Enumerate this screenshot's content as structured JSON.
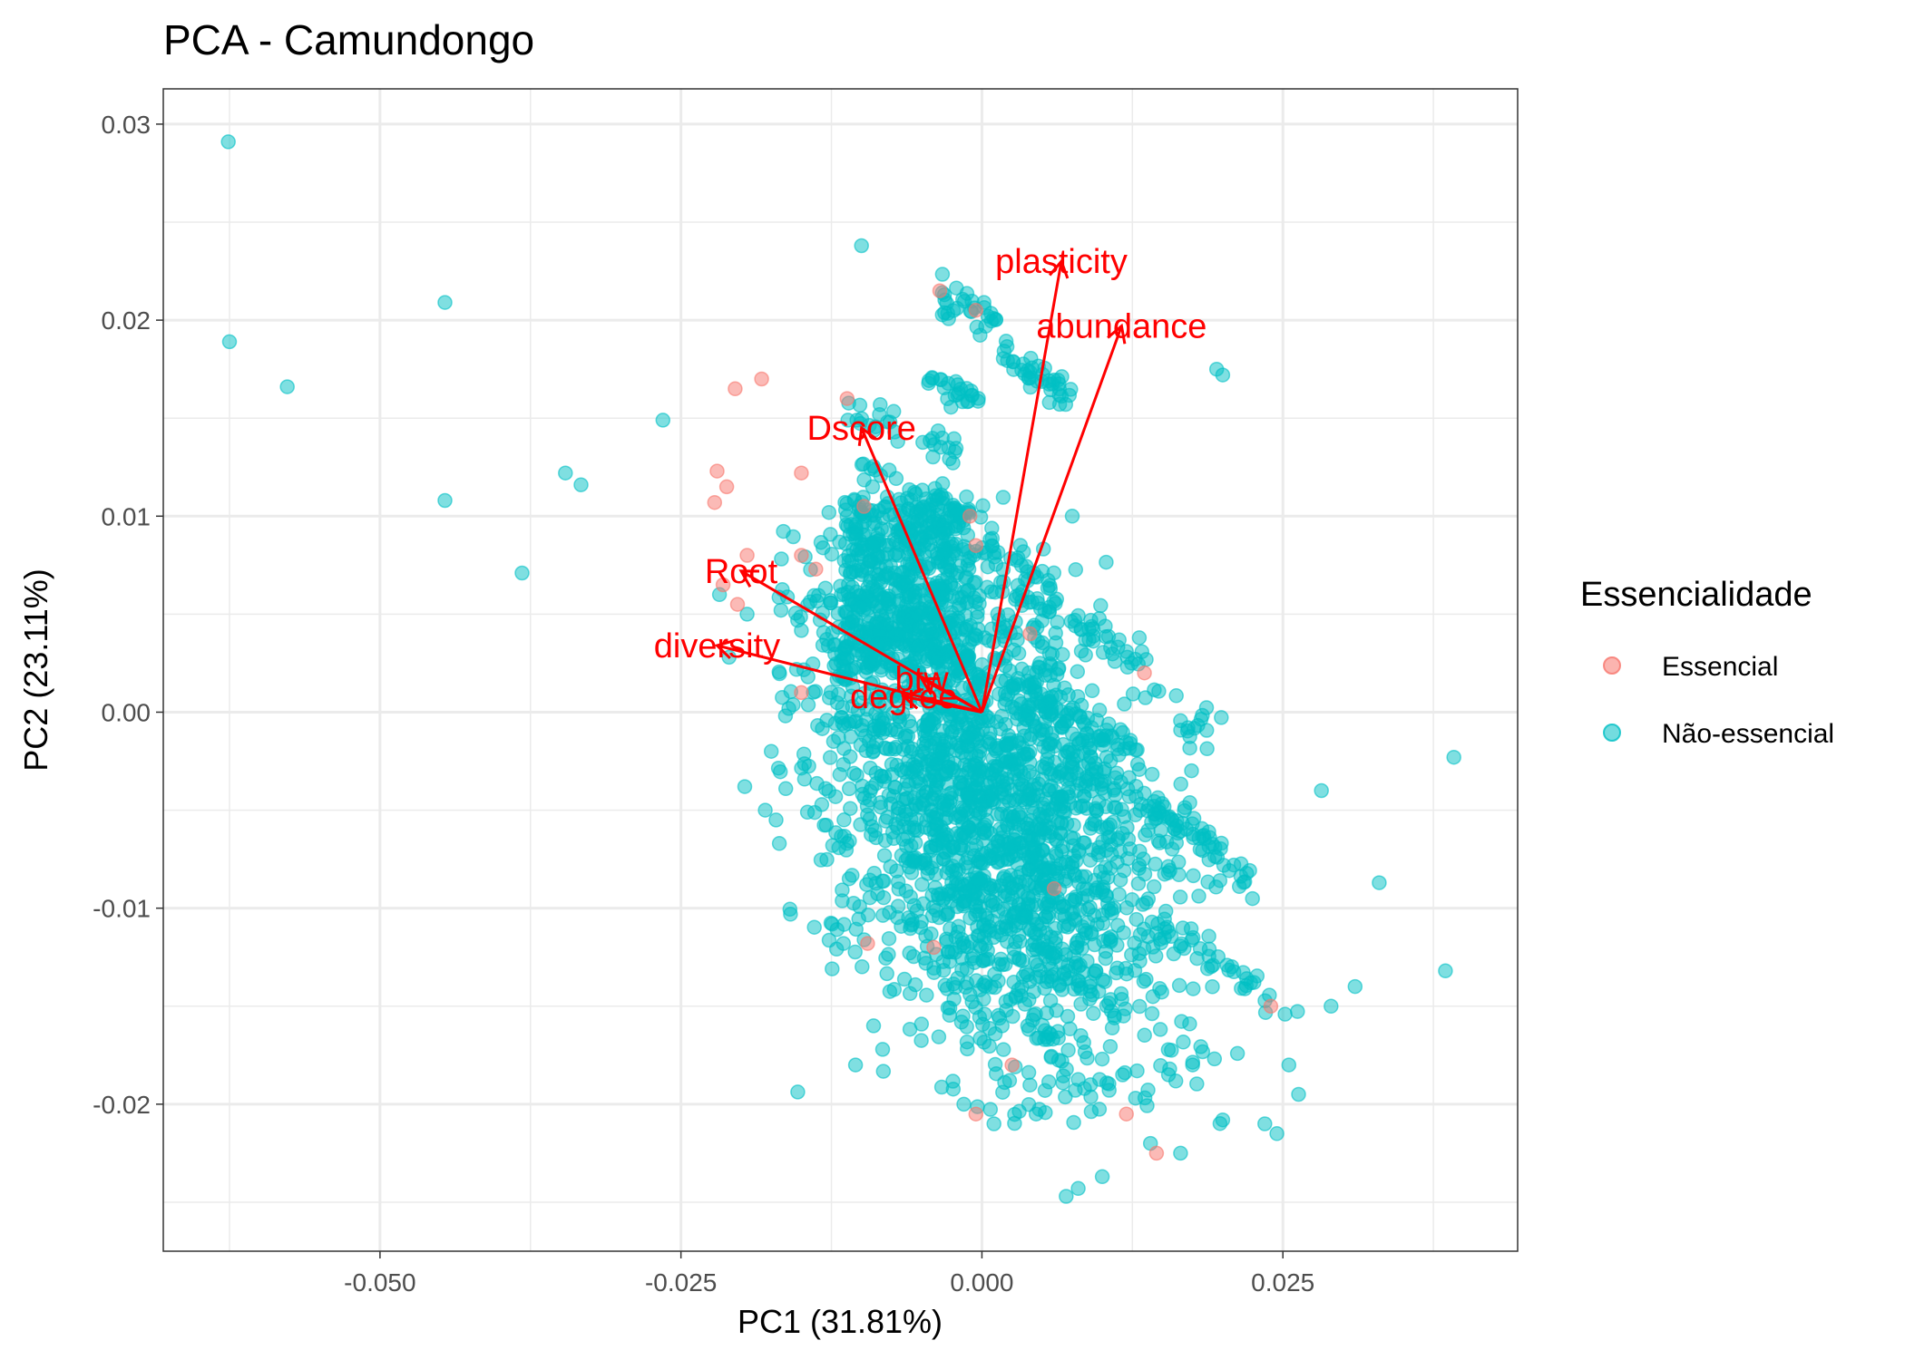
{
  "chart_data": {
    "type": "scatter",
    "title": "PCA - Camundongo",
    "xlabel": "PC1 (31.81%)",
    "ylabel": "PC2 (23.11%)",
    "xlim": [
      -0.068,
      0.0445
    ],
    "ylim": [
      -0.0275,
      0.0318
    ],
    "x_ticks": [
      -0.05,
      -0.025,
      0.0,
      0.025
    ],
    "x_tick_labels": [
      "-0.050",
      "-0.025",
      "0.000",
      "0.025"
    ],
    "y_ticks": [
      -0.02,
      -0.01,
      0.0,
      0.01,
      0.02,
      0.03
    ],
    "y_tick_labels": [
      "-0.02",
      "-0.01",
      "0.00",
      "0.01",
      "0.02",
      "0.03"
    ],
    "grid": true,
    "legend": {
      "title": "Essencialidade",
      "position": "right",
      "entries": [
        {
          "label": "Essencial",
          "color": "#F8766D"
        },
        {
          "label": "Não-essencial",
          "color": "#00BFC4"
        }
      ]
    },
    "arrow_color": "#FF0000",
    "loadings": [
      {
        "name": "plasticity",
        "x": 0.0066,
        "y": 0.023
      },
      {
        "name": "abundance",
        "x": 0.0116,
        "y": 0.0197
      },
      {
        "name": "Dscore",
        "x": -0.01,
        "y": 0.0145
      },
      {
        "name": "Root",
        "x": -0.02,
        "y": 0.0072
      },
      {
        "name": "diversity",
        "x": -0.022,
        "y": 0.0034
      },
      {
        "name": "btw",
        "x": -0.005,
        "y": 0.0017
      },
      {
        "name": "degree",
        "x": -0.0065,
        "y": 0.0008
      }
    ],
    "series": [
      {
        "name": "Essencial",
        "color": "#F8766D",
        "points": [
          [
            -0.0205,
            0.0165
          ],
          [
            -0.0183,
            0.017
          ],
          [
            -0.0112,
            0.016
          ],
          [
            -0.022,
            0.0123
          ],
          [
            -0.0212,
            0.0115
          ],
          [
            -0.015,
            0.0122
          ],
          [
            -0.0222,
            0.0107
          ],
          [
            -0.0195,
            0.008
          ],
          [
            -0.015,
            0.008
          ],
          [
            -0.0138,
            0.0073
          ],
          [
            -0.0215,
            0.0065
          ],
          [
            -0.0203,
            0.0055
          ],
          [
            -0.015,
            0.001
          ],
          [
            -0.0098,
            0.0105
          ],
          [
            -0.0035,
            0.0215
          ],
          [
            -0.0005,
            0.0205
          ],
          [
            -0.001,
            0.01
          ],
          [
            -0.0005,
            0.0085
          ],
          [
            0.004,
            0.004
          ],
          [
            0.0135,
            0.002
          ],
          [
            0.0025,
            -0.018
          ],
          [
            -0.0005,
            -0.0205
          ],
          [
            0.012,
            -0.0205
          ],
          [
            0.0145,
            -0.0225
          ],
          [
            -0.0095,
            -0.0118
          ],
          [
            0.024,
            -0.015
          ],
          [
            -0.004,
            -0.012
          ],
          [
            0.006,
            -0.009
          ]
        ]
      },
      {
        "name": "Não-essencial",
        "color": "#00BFC4",
        "points": [
          [
            -0.0626,
            0.0291
          ],
          [
            -0.0625,
            0.0189
          ],
          [
            -0.0577,
            0.0166
          ],
          [
            -0.0446,
            0.0209
          ],
          [
            -0.0446,
            0.0108
          ],
          [
            -0.0382,
            0.0071
          ],
          [
            -0.0346,
            0.0122
          ],
          [
            -0.0333,
            0.0116
          ],
          [
            -0.0265,
            0.0149
          ],
          [
            -0.01,
            0.0238
          ],
          [
            0.0075,
            0.01
          ],
          [
            0.0195,
            0.0175
          ],
          [
            0.02,
            0.0172
          ],
          [
            0.0392,
            -0.0023
          ],
          [
            0.0282,
            -0.004
          ],
          [
            0.033,
            -0.0087
          ],
          [
            0.0385,
            -0.0132
          ],
          [
            0.031,
            -0.014
          ],
          [
            0.029,
            -0.015
          ],
          [
            0.0263,
            -0.0195
          ],
          [
            0.0255,
            -0.018
          ],
          [
            -0.0197,
            -0.0038
          ],
          [
            -0.018,
            -0.005
          ],
          [
            -0.0171,
            -0.0055
          ],
          [
            -0.0175,
            -0.002
          ],
          [
            -0.0195,
            0.005
          ],
          [
            -0.021,
            0.0028
          ],
          [
            -0.0218,
            0.006
          ],
          [
            -0.0115,
            -0.0118
          ],
          [
            -0.0105,
            -0.018
          ],
          [
            -0.009,
            -0.016
          ],
          [
            -0.0015,
            -0.02
          ],
          [
            0.007,
            -0.0247
          ],
          [
            0.008,
            -0.0243
          ],
          [
            0.01,
            -0.0237
          ],
          [
            0.014,
            -0.022
          ],
          [
            0.0165,
            -0.0225
          ],
          [
            0.02,
            -0.0208
          ],
          [
            0.0235,
            -0.021
          ],
          [
            0.0245,
            -0.0215
          ],
          [
            0.0155,
            -0.0185
          ],
          [
            0.0175,
            -0.018
          ],
          [
            0.0045,
            -0.0205
          ],
          [
            0.001,
            -0.021
          ]
        ]
      }
    ]
  }
}
